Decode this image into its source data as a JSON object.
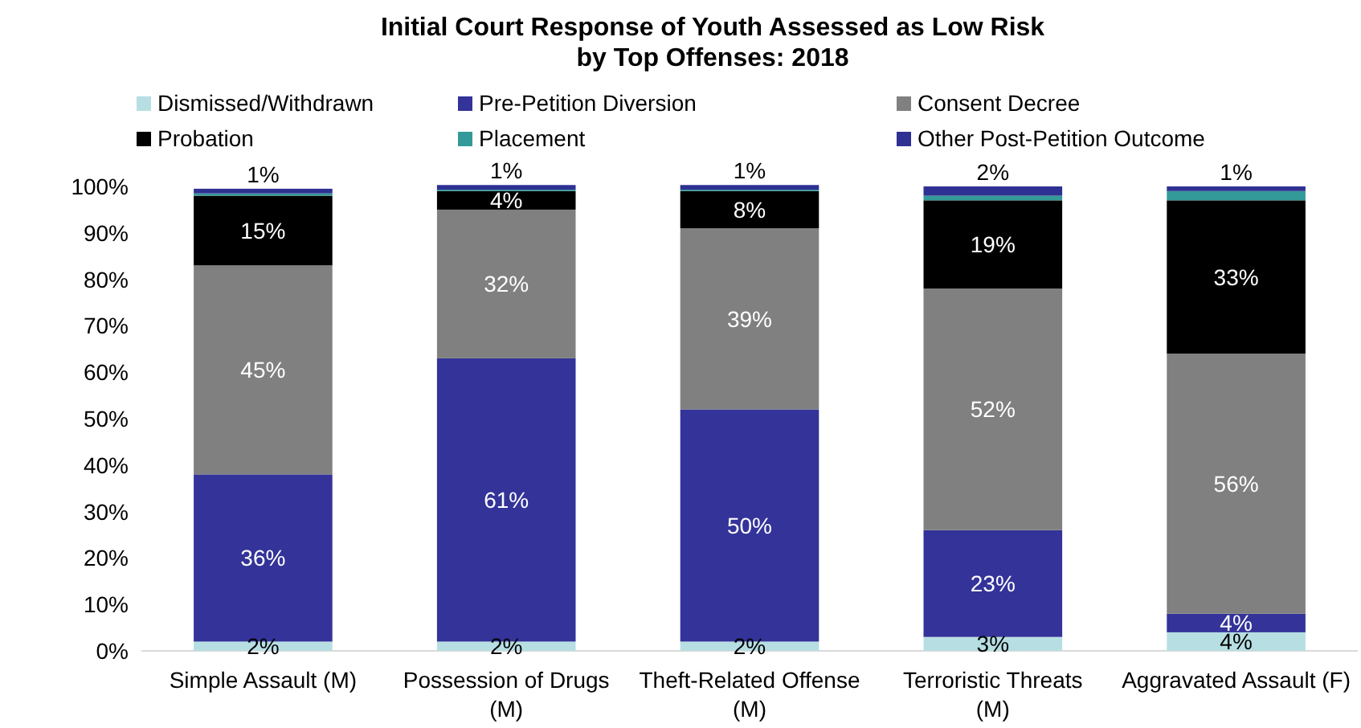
{
  "chart_data": {
    "type": "bar",
    "stacked": true,
    "title": "Initial Court Response of Youth Assessed as Low Risk\nby Top Offenses: 2018",
    "categories": [
      "Simple Assault (M)",
      "Possession of Drugs (M)",
      "Theft-Related Offense (M)",
      "Terroristic Threats (M)",
      "Aggravated Assault (F)"
    ],
    "series": [
      {
        "name": "Dismissed/Withdrawn",
        "color": "#b7dfe3",
        "values": [
          2,
          2,
          2,
          3,
          4
        ],
        "value_labels": [
          "2%",
          "2%",
          "2%",
          "3%",
          "4%"
        ]
      },
      {
        "name": "Pre-Petition Diversion",
        "color": "#333399",
        "values": [
          36,
          61,
          50,
          23,
          4
        ],
        "value_labels": [
          "36%",
          "61%",
          "50%",
          "23%",
          "4%"
        ]
      },
      {
        "name": "Consent Decree",
        "color": "#808080",
        "values": [
          45,
          32,
          39,
          52,
          56
        ],
        "value_labels": [
          "45%",
          "32%",
          "39%",
          "52%",
          "56%"
        ]
      },
      {
        "name": "Probation",
        "color": "#000000",
        "values": [
          15,
          4,
          8,
          19,
          33
        ],
        "value_labels": [
          "15%",
          "4%",
          "8%",
          "19%",
          "33%"
        ]
      },
      {
        "name": "Placement",
        "color": "#339999",
        "values": [
          0.5,
          0.3,
          0.3,
          1,
          2
        ],
        "value_labels": [
          null,
          null,
          null,
          null,
          null
        ]
      },
      {
        "name": "Other Post-Petition Outcome",
        "color": "#2e3192",
        "values": [
          1,
          1,
          1,
          2,
          1
        ],
        "value_labels": [
          "1%",
          "1%",
          "1%",
          "2%",
          "1%"
        ]
      }
    ],
    "ylim": [
      0,
      100
    ],
    "yticks": [
      {
        "value": 0,
        "label": "0%"
      },
      {
        "value": 10,
        "label": "10%"
      },
      {
        "value": 20,
        "label": "20%"
      },
      {
        "value": 30,
        "label": "30%"
      },
      {
        "value": 40,
        "label": "40%"
      },
      {
        "value": 50,
        "label": "50%"
      },
      {
        "value": 60,
        "label": "60%"
      },
      {
        "value": 70,
        "label": "70%"
      },
      {
        "value": 80,
        "label": "80%"
      },
      {
        "value": 90,
        "label": "90%"
      },
      {
        "value": 100,
        "label": "100%"
      }
    ],
    "grid": false,
    "legend": "top"
  }
}
